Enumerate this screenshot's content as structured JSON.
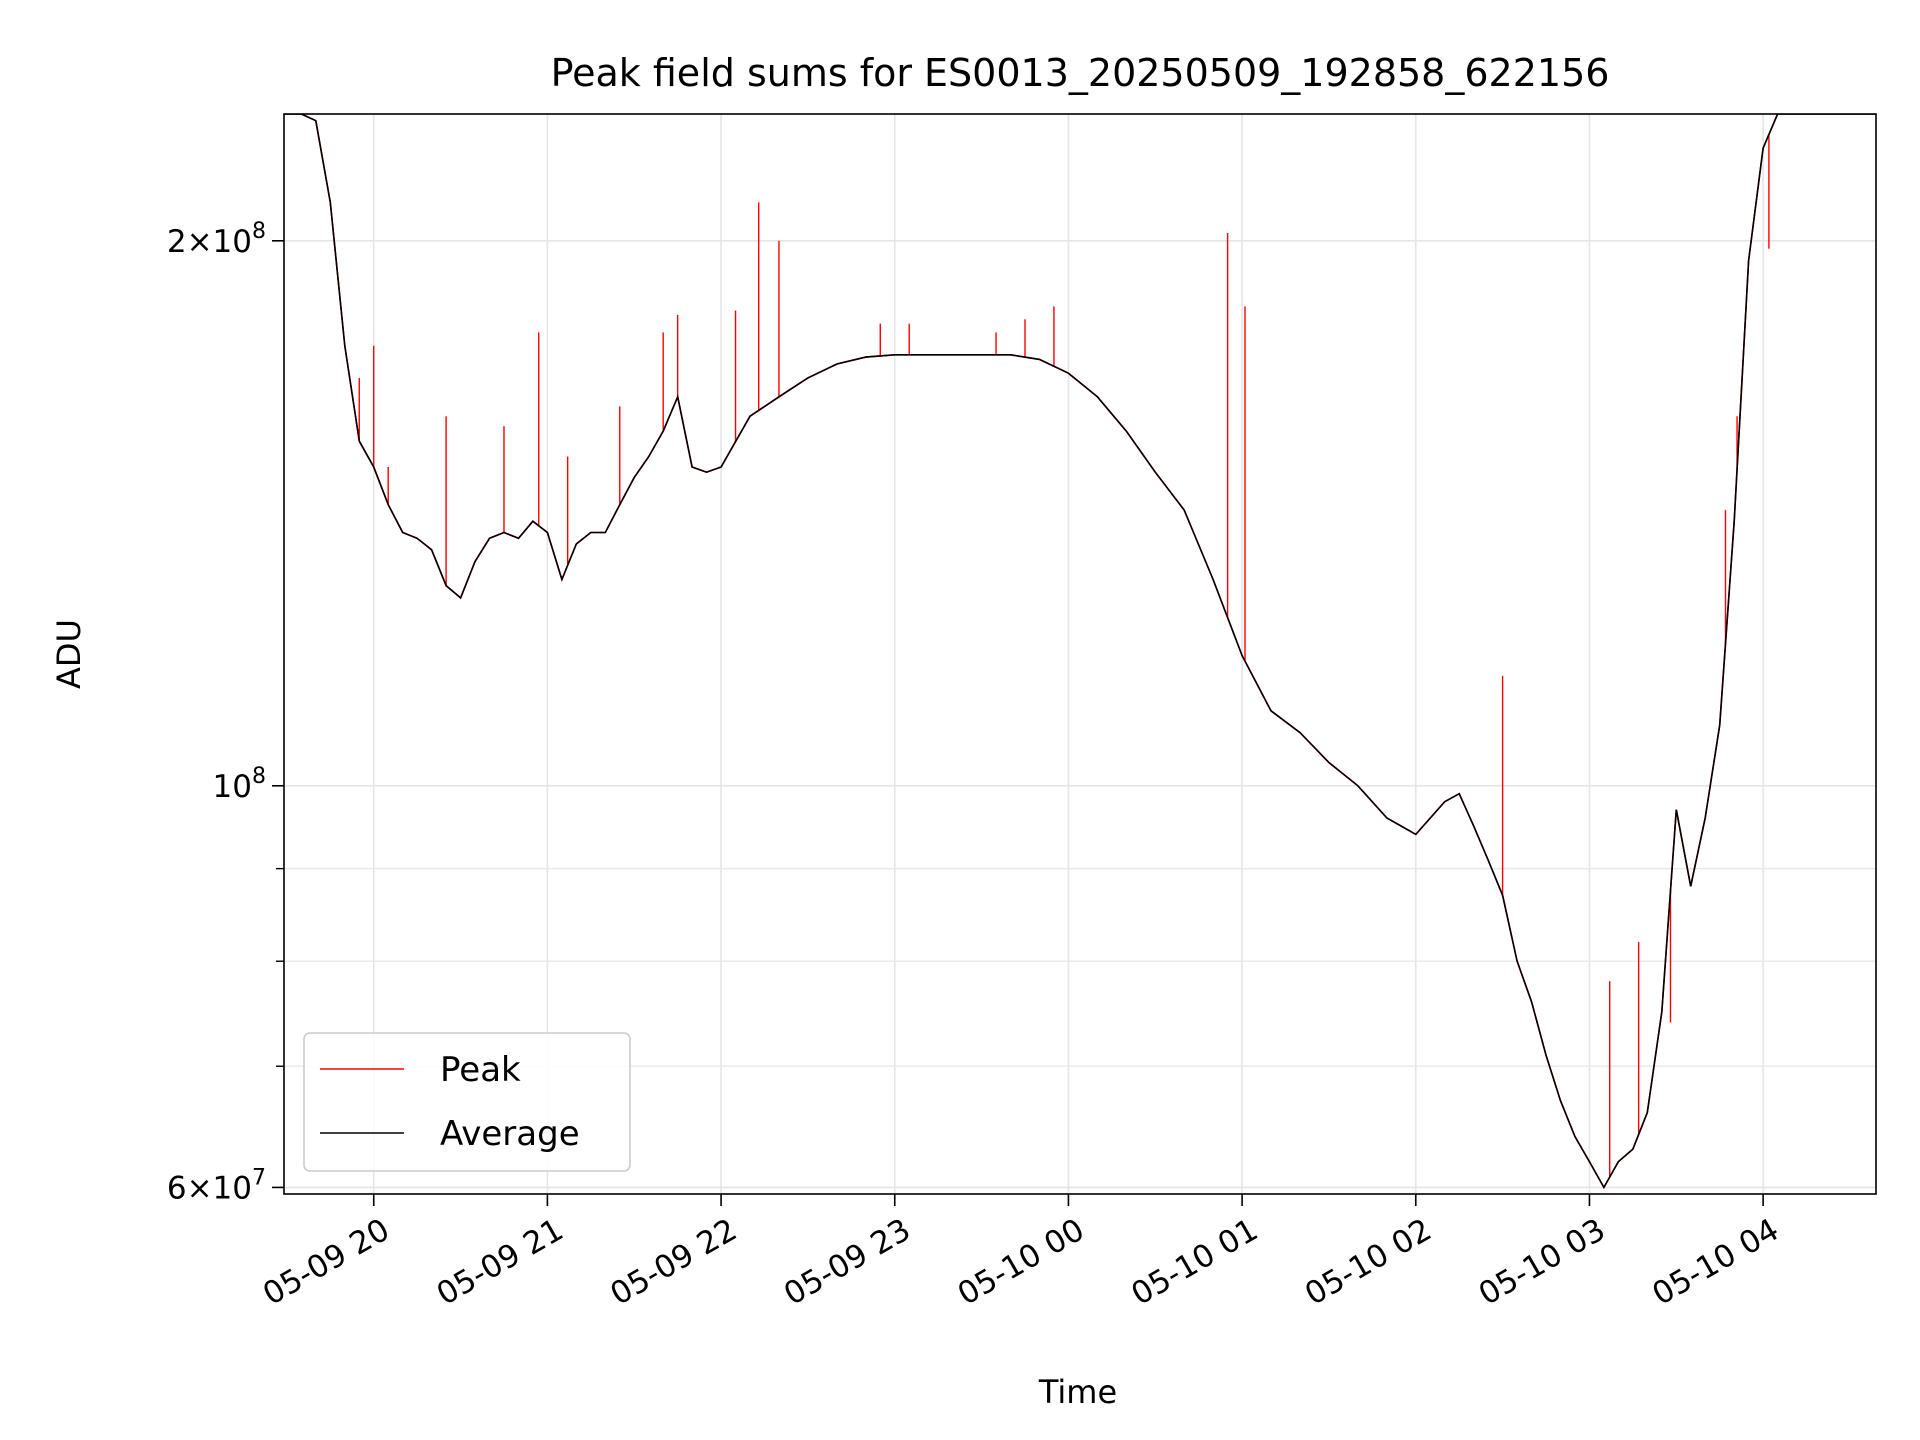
{
  "chart_data": {
    "type": "line",
    "title": "Peak field sums for ES0013_20250509_192858_622156",
    "xlabel": "Time",
    "ylabel": "ADU",
    "y_scale": "log",
    "ylim": [
      59500000,
      235000000
    ],
    "xlim": [
      "05-09 19:29",
      "05-10 04:39"
    ],
    "grid": true,
    "legend": {
      "placement": "lower-left"
    },
    "x_ticks": [
      "05-09 20",
      "05-09 21",
      "05-09 22",
      "05-09 23",
      "05-10 00",
      "05-10 01",
      "05-10 02",
      "05-10 03",
      "05-10 04"
    ],
    "y_ticks": [
      {
        "value": 60000000,
        "mantissa": "6",
        "base": "10",
        "exp": "7"
      },
      {
        "value": 100000000,
        "mantissa": "",
        "base": "10",
        "exp": "8"
      },
      {
        "value": 200000000,
        "mantissa": "2",
        "base": "10",
        "exp": "8"
      }
    ],
    "x": [
      "05-09 19:29",
      "05-09 19:35",
      "05-09 19:40",
      "05-09 19:45",
      "05-09 19:50",
      "05-09 19:55",
      "05-09 20:00",
      "05-09 20:05",
      "05-09 20:10",
      "05-09 20:15",
      "05-09 20:20",
      "05-09 20:25",
      "05-09 20:30",
      "05-09 20:35",
      "05-09 20:40",
      "05-09 20:45",
      "05-09 20:50",
      "05-09 20:55",
      "05-09 21:00",
      "05-09 21:05",
      "05-09 21:10",
      "05-09 21:15",
      "05-09 21:20",
      "05-09 21:25",
      "05-09 21:30",
      "05-09 21:35",
      "05-09 21:40",
      "05-09 21:45",
      "05-09 21:50",
      "05-09 21:55",
      "05-09 22:00",
      "05-09 22:10",
      "05-09 22:20",
      "05-09 22:30",
      "05-09 22:40",
      "05-09 22:50",
      "05-09 23:00",
      "05-09 23:10",
      "05-09 23:20",
      "05-09 23:30",
      "05-09 23:40",
      "05-09 23:50",
      "05-10 00:00",
      "05-10 00:10",
      "05-10 00:20",
      "05-10 00:30",
      "05-10 00:40",
      "05-10 00:50",
      "05-10 01:00",
      "05-10 01:10",
      "05-10 01:20",
      "05-10 01:30",
      "05-10 01:40",
      "05-10 01:50",
      "05-10 02:00",
      "05-10 02:10",
      "05-10 02:15",
      "05-10 02:20",
      "05-10 02:25",
      "05-10 02:30",
      "05-10 02:35",
      "05-10 02:40",
      "05-10 02:45",
      "05-10 02:50",
      "05-10 02:55",
      "05-10 03:00",
      "05-10 03:05",
      "05-10 03:10",
      "05-10 03:15",
      "05-10 03:20",
      "05-10 03:25",
      "05-10 03:30",
      "05-10 03:35",
      "05-10 03:40",
      "05-10 03:45",
      "05-10 03:50",
      "05-10 03:55",
      "05-10 04:00",
      "05-10 04:05",
      "05-10 04:10",
      "05-10 04:15",
      "05-10 04:20",
      "05-10 04:39"
    ],
    "series": [
      {
        "name": "Average",
        "color": "#000000",
        "values": [
          235000000,
          235000000,
          233000000,
          210000000,
          175000000,
          155000000,
          150000000,
          143000000,
          138000000,
          137000000,
          135000000,
          129000000,
          127000000,
          133000000,
          137000000,
          138000000,
          137000000,
          140000000,
          138000000,
          130000000,
          136000000,
          138000000,
          138000000,
          143000000,
          148000000,
          152000000,
          157000000,
          164000000,
          150000000,
          149000000,
          150000000,
          160000000,
          164000000,
          168000000,
          171000000,
          172500000,
          173000000,
          173000000,
          173000000,
          173000000,
          173000000,
          172000000,
          169000000,
          164000000,
          157000000,
          149000000,
          142000000,
          130000000,
          118000000,
          110000000,
          107000000,
          103000000,
          100000000,
          96000000,
          94000000,
          98000000,
          99000000,
          95000000,
          91000000,
          87000000,
          80000000,
          76000000,
          71000000,
          67000000,
          64000000,
          62000000,
          60000000,
          62000000,
          63000000,
          66000000,
          75000000,
          97000000,
          88000000,
          96000000,
          108000000,
          140000000,
          195000000,
          225000000,
          235000000,
          235000000,
          235000000,
          235000000,
          235000000
        ]
      },
      {
        "name": "Peak",
        "color": "#ff0000",
        "spikes": [
          {
            "x": "05-09 19:55",
            "value": 168000000
          },
          {
            "x": "05-09 20:00",
            "value": 175000000
          },
          {
            "x": "05-09 20:05",
            "value": 150000000
          },
          {
            "x": "05-09 20:25",
            "value": 160000000
          },
          {
            "x": "05-09 20:45",
            "value": 158000000
          },
          {
            "x": "05-09 20:57",
            "value": 178000000
          },
          {
            "x": "05-09 21:07",
            "value": 152000000
          },
          {
            "x": "05-09 21:25",
            "value": 162000000
          },
          {
            "x": "05-09 21:40",
            "value": 178000000
          },
          {
            "x": "05-09 21:45",
            "value": 182000000
          },
          {
            "x": "05-09 22:05",
            "value": 183000000
          },
          {
            "x": "05-09 22:13",
            "value": 210000000
          },
          {
            "x": "05-09 22:20",
            "value": 200000000
          },
          {
            "x": "05-09 22:55",
            "value": 180000000
          },
          {
            "x": "05-09 23:05",
            "value": 180000000
          },
          {
            "x": "05-09 23:35",
            "value": 178000000
          },
          {
            "x": "05-09 23:45",
            "value": 181000000
          },
          {
            "x": "05-09 23:55",
            "value": 184000000
          },
          {
            "x": "05-10 00:55",
            "value": 202000000
          },
          {
            "x": "05-10 01:01",
            "value": 184000000
          },
          {
            "x": "05-10 02:30",
            "value": 115000000
          },
          {
            "x": "05-10 03:07",
            "value": 78000000
          },
          {
            "x": "05-10 03:17",
            "value": 82000000
          },
          {
            "x": "05-10 03:28",
            "value": 74000000
          },
          {
            "x": "05-10 03:47",
            "value": 142000000
          },
          {
            "x": "05-10 03:51",
            "value": 160000000
          },
          {
            "x": "05-10 04:02",
            "value": 198000000
          }
        ]
      }
    ]
  }
}
